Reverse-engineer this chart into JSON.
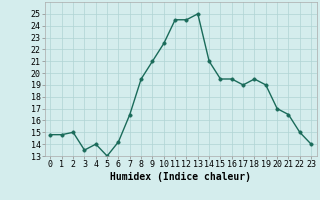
{
  "x": [
    0,
    1,
    2,
    3,
    4,
    5,
    6,
    7,
    8,
    9,
    10,
    11,
    12,
    13,
    14,
    15,
    16,
    17,
    18,
    19,
    20,
    21,
    22,
    23
  ],
  "y": [
    14.8,
    14.8,
    15.0,
    13.5,
    14.0,
    13.0,
    14.2,
    16.5,
    19.5,
    21.0,
    22.5,
    24.5,
    24.5,
    25.0,
    21.0,
    19.5,
    19.5,
    19.0,
    19.5,
    19.0,
    17.0,
    16.5,
    15.0,
    14.0
  ],
  "line_color": "#1a6b5a",
  "marker_color": "#1a6b5a",
  "bg_color": "#d4eded",
  "grid_color": "#b0d4d4",
  "xlabel": "Humidex (Indice chaleur)",
  "ylim": [
    13,
    26
  ],
  "xlim": [
    -0.5,
    23.5
  ],
  "yticks": [
    13,
    14,
    15,
    16,
    17,
    18,
    19,
    20,
    21,
    22,
    23,
    24,
    25
  ],
  "xtick_labels": [
    "0",
    "1",
    "2",
    "3",
    "4",
    "5",
    "6",
    "7",
    "8",
    "9",
    "10",
    "11",
    "12",
    "13",
    "14",
    "15",
    "16",
    "17",
    "18",
    "19",
    "20",
    "21",
    "22",
    "23"
  ],
  "xlabel_fontsize": 7,
  "tick_fontsize": 6,
  "line_width": 1.0,
  "marker_size": 2.5
}
